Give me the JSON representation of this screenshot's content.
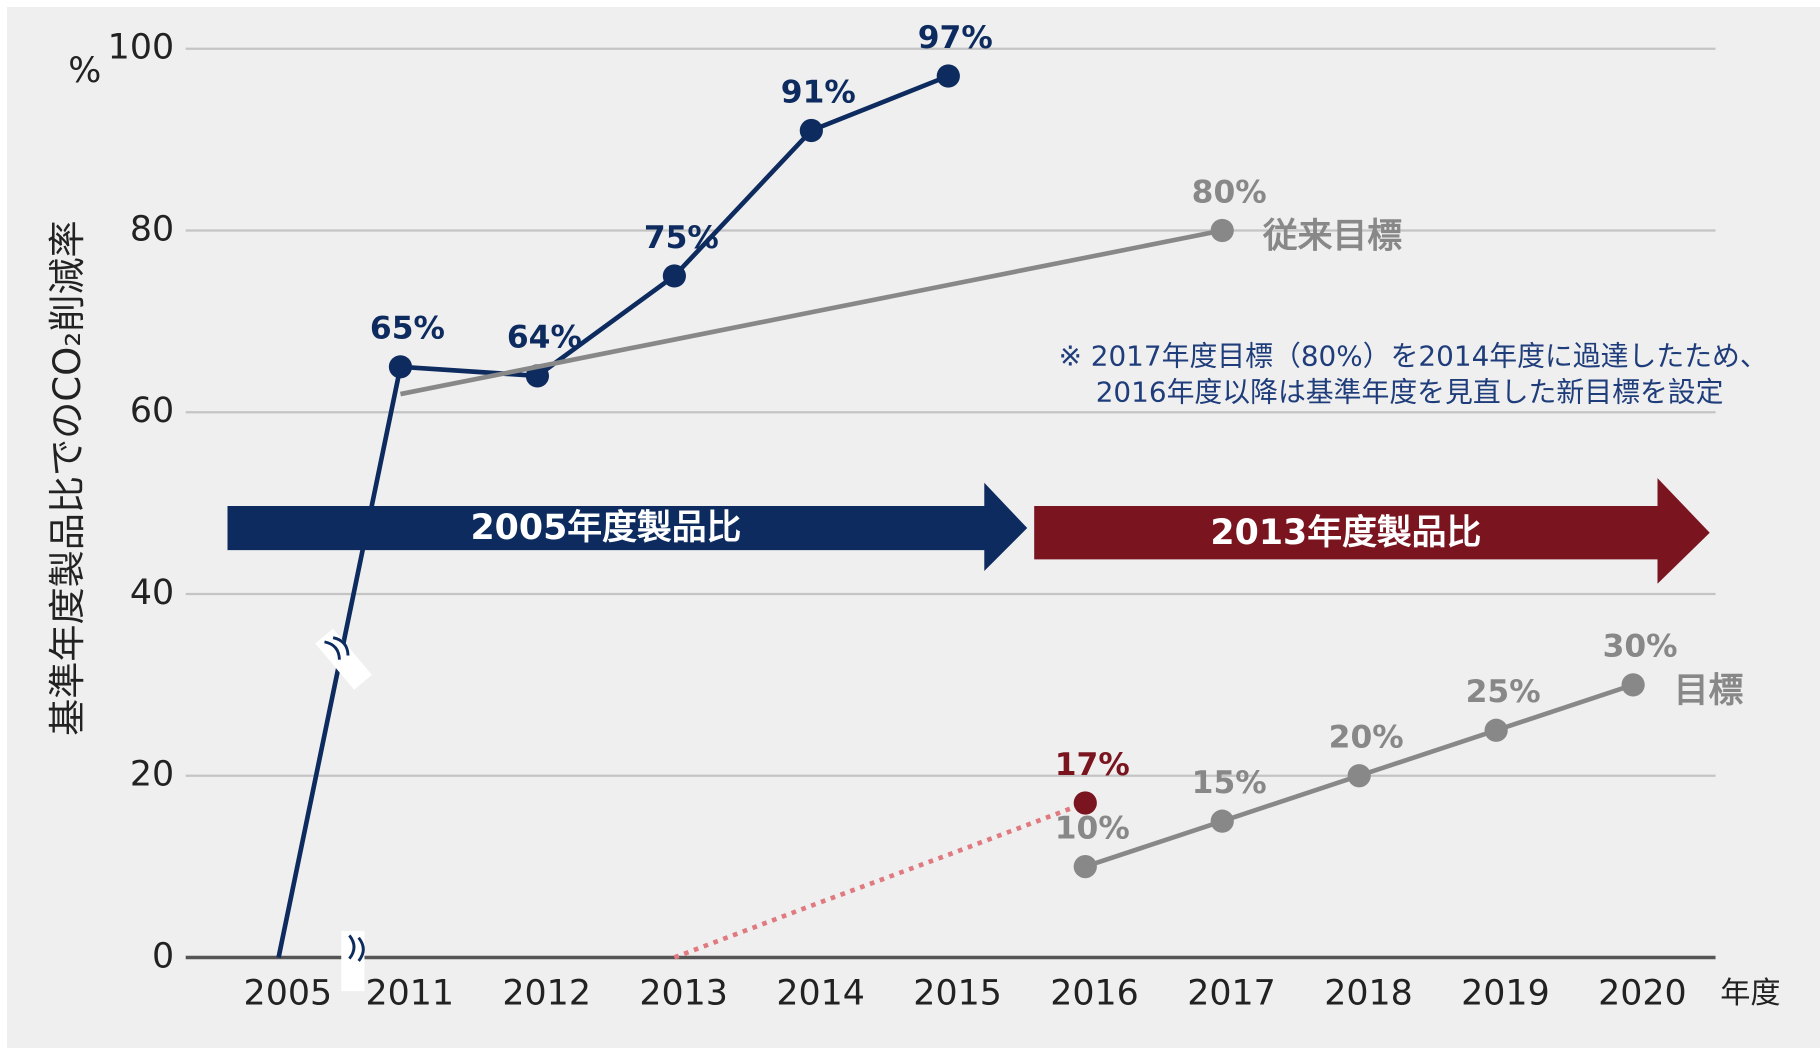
{
  "chart_data": {
    "type": "line",
    "y_unit": "%",
    "x_unit": "年度",
    "y_label": "基準年度製品比でのCO₂削減率",
    "categories": [
      "2005",
      "2011",
      "2012",
      "2013",
      "2014",
      "2015",
      "2016",
      "2017",
      "2018",
      "2019",
      "2020"
    ],
    "ylim": [
      0,
      100
    ],
    "yticks": [
      0,
      20,
      40,
      60,
      80,
      100
    ],
    "grid": true,
    "series": [
      {
        "color": "#0d2b5e",
        "line_style": "solid",
        "values": [
          0,
          65,
          64,
          75,
          91,
          97,
          null,
          null,
          null,
          null,
          null
        ],
        "value_labels": [
          null,
          "65%",
          "64%",
          "75%",
          "91%",
          "97%",
          null,
          null,
          null,
          null,
          null
        ]
      },
      {
        "name": "従来目標",
        "color": "#888888",
        "line_style": "solid",
        "values": [
          null,
          62,
          65,
          68,
          71,
          74,
          77,
          80,
          null,
          null,
          null
        ],
        "value_labels": [
          null,
          null,
          null,
          null,
          null,
          null,
          null,
          "80%",
          null,
          null,
          null
        ]
      },
      {
        "color": "#7a1520",
        "line_color": "#e07a80",
        "line_style": "dotted",
        "values": [
          null,
          null,
          null,
          0,
          5.7,
          11.3,
          17,
          null,
          null,
          null,
          null
        ],
        "value_labels": [
          null,
          null,
          null,
          null,
          null,
          null,
          "17%",
          null,
          null,
          null,
          null
        ]
      },
      {
        "name": "目標",
        "color": "#888888",
        "line_style": "solid",
        "values": [
          null,
          null,
          null,
          null,
          null,
          null,
          10,
          15,
          20,
          25,
          30
        ],
        "value_labels": [
          null,
          null,
          null,
          null,
          null,
          null,
          "10%",
          "15%",
          "20%",
          "25%",
          "30%"
        ]
      }
    ],
    "arrows": [
      {
        "label": "2005年度製品比",
        "color": "#0d2b5e"
      },
      {
        "label": "2013年度製品比",
        "color": "#7a1520"
      }
    ],
    "note": [
      "※ 2017年度目標（80%）を2014年度に過達したため、",
      "2016年度以降は基準年度を見直した新目標を設定"
    ]
  }
}
